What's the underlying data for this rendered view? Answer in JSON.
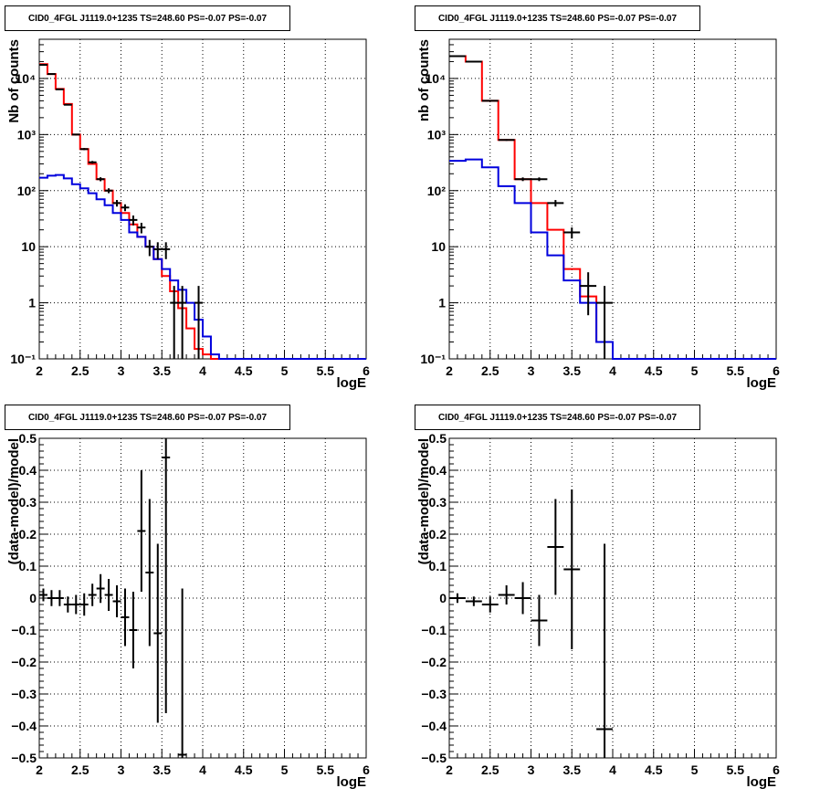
{
  "page_title": "CID0_4FGL J1119.0+1235 TS=248.60 PS=-0.07 PS=-0.07",
  "colors": {
    "data": "#000000",
    "total_model": "#ff0000",
    "background_model": "#0000dd",
    "grid": "#000000"
  },
  "chart_data": [
    {
      "type": "line",
      "title": "CID0_4FGL J1119.0+1235 TS=248.60 PS=-0.07 PS=-0.07",
      "xlabel": "logE",
      "ylabel": "Nb of counts",
      "xlim": [
        2,
        6
      ],
      "ylim": [
        0.1,
        50000
      ],
      "yscale": "log",
      "grid": true,
      "x_ticks": [
        "2",
        "2.5",
        "3",
        "3.5",
        "4",
        "4.5",
        "5",
        "5.5",
        "6"
      ],
      "y_ticks": [
        {
          "value": 0.1,
          "label": "10⁻¹"
        },
        {
          "value": 1,
          "label": "1"
        },
        {
          "value": 10,
          "label": "10"
        },
        {
          "value": 100,
          "label": "10²"
        },
        {
          "value": 1000,
          "label": "10³"
        },
        {
          "value": 10000,
          "label": "10⁴"
        }
      ],
      "bin_width": 0.1,
      "series": [
        {
          "style": "histogram",
          "color": "#ff0000",
          "bin_edges_start": 2,
          "values": [
            18000,
            12000,
            6500,
            3500,
            1000,
            550,
            300,
            160,
            100,
            60,
            40,
            25,
            15,
            10,
            6,
            3,
            1.6,
            0.8,
            0.35,
            0.15,
            0.12,
            0.1,
            0.1,
            0.1,
            0.1,
            0.1,
            0.1,
            0.1,
            0.1,
            0.1,
            0.1,
            0.1,
            0.1,
            0.1,
            0.1,
            0.1,
            0.1,
            0.1,
            0.1,
            0.1
          ]
        },
        {
          "style": "histogram",
          "color": "#0000dd",
          "bin_edges_start": 2,
          "values": [
            170,
            185,
            190,
            165,
            130,
            110,
            90,
            70,
            55,
            40,
            30,
            18,
            15,
            10,
            6,
            4,
            2.5,
            1.7,
            1,
            0.5,
            0.25,
            0.12,
            0.1,
            0.1,
            0.1,
            0.1,
            0.1,
            0.1,
            0.1,
            0.1,
            0.1,
            0.1,
            0.1,
            0.1,
            0.1,
            0.1,
            0.1,
            0.1,
            0.1,
            0.1
          ]
        },
        {
          "style": "errorbar",
          "color": "#000000",
          "x": [
            2.05,
            2.15,
            2.25,
            2.35,
            2.45,
            2.55,
            2.65,
            2.75,
            2.85,
            2.95,
            3.05,
            3.15,
            3.25,
            3.35,
            3.45,
            3.55,
            3.65,
            3.75,
            3.85,
            3.95
          ],
          "y": [
            17500,
            12000,
            6400,
            3400,
            1000,
            550,
            320,
            160,
            100,
            60,
            50,
            30,
            22,
            10,
            9,
            9,
            1,
            1,
            0,
            1
          ],
          "xerr": 0.05,
          "yerr_low": [
            130,
            110,
            80,
            58,
            32,
            23,
            18,
            13,
            10,
            8,
            7,
            6,
            4.7,
            3.2,
            3,
            3,
            0.95,
            0.95,
            0,
            0.95
          ],
          "yerr_high": [
            130,
            110,
            80,
            58,
            32,
            23,
            18,
            13,
            10,
            8,
            7,
            6,
            4.7,
            3.2,
            3,
            3,
            1.0,
            1.0,
            0,
            1.0
          ]
        }
      ]
    },
    {
      "type": "line",
      "title": "CID0_4FGL J1119.0+1235 TS=248.60 PS=-0.07 PS=-0.07",
      "xlabel": "logE",
      "ylabel": "nb of counts",
      "xlim": [
        2,
        6
      ],
      "ylim": [
        0.1,
        50000
      ],
      "yscale": "log",
      "grid": true,
      "x_ticks": [
        "2",
        "2.5",
        "3",
        "3.5",
        "4",
        "4.5",
        "5",
        "5.5",
        "6"
      ],
      "y_ticks": [
        {
          "value": 0.1,
          "label": "10⁻¹"
        },
        {
          "value": 1,
          "label": "1"
        },
        {
          "value": 10,
          "label": "10"
        },
        {
          "value": 100,
          "label": "10²"
        },
        {
          "value": 1000,
          "label": "10³"
        },
        {
          "value": 10000,
          "label": "10⁴"
        }
      ],
      "bin_width": 0.2,
      "series": [
        {
          "style": "histogram",
          "color": "#ff0000",
          "bin_edges_start": 2,
          "values": [
            25000,
            20000,
            4000,
            800,
            160,
            60,
            20,
            4,
            1.3,
            0.2,
            0.1,
            0.1,
            0.1,
            0.1,
            0.1,
            0.1,
            0.1,
            0.1,
            0.1,
            0.1
          ]
        },
        {
          "style": "histogram",
          "color": "#0000dd",
          "bin_edges_start": 2,
          "values": [
            340,
            360,
            260,
            120,
            60,
            18,
            7,
            2.5,
            1,
            0.2,
            0.1,
            0.1,
            0.1,
            0.1,
            0.1,
            0.1,
            0.1,
            0.1,
            0.1,
            0.1
          ]
        },
        {
          "style": "errorbar",
          "color": "#000000",
          "x": [
            2.1,
            2.3,
            2.5,
            2.7,
            2.9,
            3.1,
            3.3,
            3.5,
            3.7,
            3.9
          ],
          "y": [
            25000,
            20000,
            4000,
            800,
            160,
            160,
            60,
            18,
            2,
            1
          ],
          "xerr": 0.1,
          "yerr_low": [
            160,
            140,
            63,
            28,
            12,
            12,
            8,
            4,
            1.4,
            1
          ],
          "yerr_high": [
            160,
            140,
            63,
            28,
            12,
            12,
            8,
            4,
            1.5,
            1
          ]
        }
      ]
    },
    {
      "type": "scatter",
      "title": "CID0_4FGL J1119.0+1235 TS=248.60 PS=-0.07 PS=-0.07",
      "xlabel": "logE",
      "ylabel": "(data-model)/model",
      "xlim": [
        2,
        6
      ],
      "ylim": [
        -0.5,
        0.5
      ],
      "grid": true,
      "x_ticks": [
        "2",
        "2.5",
        "3",
        "3.5",
        "4",
        "4.5",
        "5",
        "5.5",
        "6"
      ],
      "y_ticks": [
        "−0.5",
        "−0.4",
        "−0.3",
        "−0.2",
        "−0.1",
        "0",
        "0.1",
        "0.2",
        "0.3",
        "0.4",
        "0.5"
      ],
      "series": [
        {
          "style": "errorbar",
          "color": "#000000",
          "x": [
            2.05,
            2.15,
            2.25,
            2.35,
            2.45,
            2.55,
            2.65,
            2.75,
            2.85,
            2.95,
            3.05,
            3.15,
            3.25,
            3.35,
            3.45,
            3.55,
            3.75
          ],
          "y": [
            0.01,
            0.0,
            -0.0,
            -0.02,
            -0.02,
            -0.02,
            0.01,
            0.03,
            0.01,
            -0.01,
            -0.06,
            -0.1,
            0.21,
            0.08,
            -0.11,
            0.44,
            -0.49
          ],
          "xerr": 0.05,
          "yerr": [
            0.02,
            0.025,
            0.025,
            0.025,
            0.03,
            0.035,
            0.035,
            0.045,
            0.05,
            0.05,
            0.09,
            0.12,
            0.19,
            0.23,
            0.28,
            0.8,
            0.52
          ]
        }
      ]
    },
    {
      "type": "scatter",
      "title": "CID0_4FGL J1119.0+1235 TS=248.60 PS=-0.07 PS=-0.07",
      "xlabel": "logE",
      "ylabel": "(data-model)/model",
      "xlim": [
        2,
        6
      ],
      "ylim": [
        -0.5,
        0.5
      ],
      "grid": true,
      "x_ticks": [
        "2",
        "2.5",
        "3",
        "3.5",
        "4",
        "4.5",
        "5",
        "5.5",
        "6"
      ],
      "y_ticks": [
        "−0.5",
        "−0.4",
        "−0.3",
        "−0.2",
        "−0.1",
        "0",
        "0.1",
        "0.2",
        "0.3",
        "0.4",
        "0.5"
      ],
      "series": [
        {
          "style": "errorbar",
          "color": "#000000",
          "x": [
            2.1,
            2.3,
            2.5,
            2.7,
            2.9,
            3.1,
            3.3,
            3.5,
            3.9
          ],
          "y": [
            0.0,
            -0.01,
            -0.02,
            0.01,
            -0.0,
            -0.07,
            0.16,
            0.09,
            -0.41
          ],
          "xerr": 0.1,
          "yerr": [
            0.015,
            0.015,
            0.025,
            0.03,
            0.05,
            0.08,
            0.15,
            0.25,
            0.58
          ]
        }
      ]
    }
  ]
}
